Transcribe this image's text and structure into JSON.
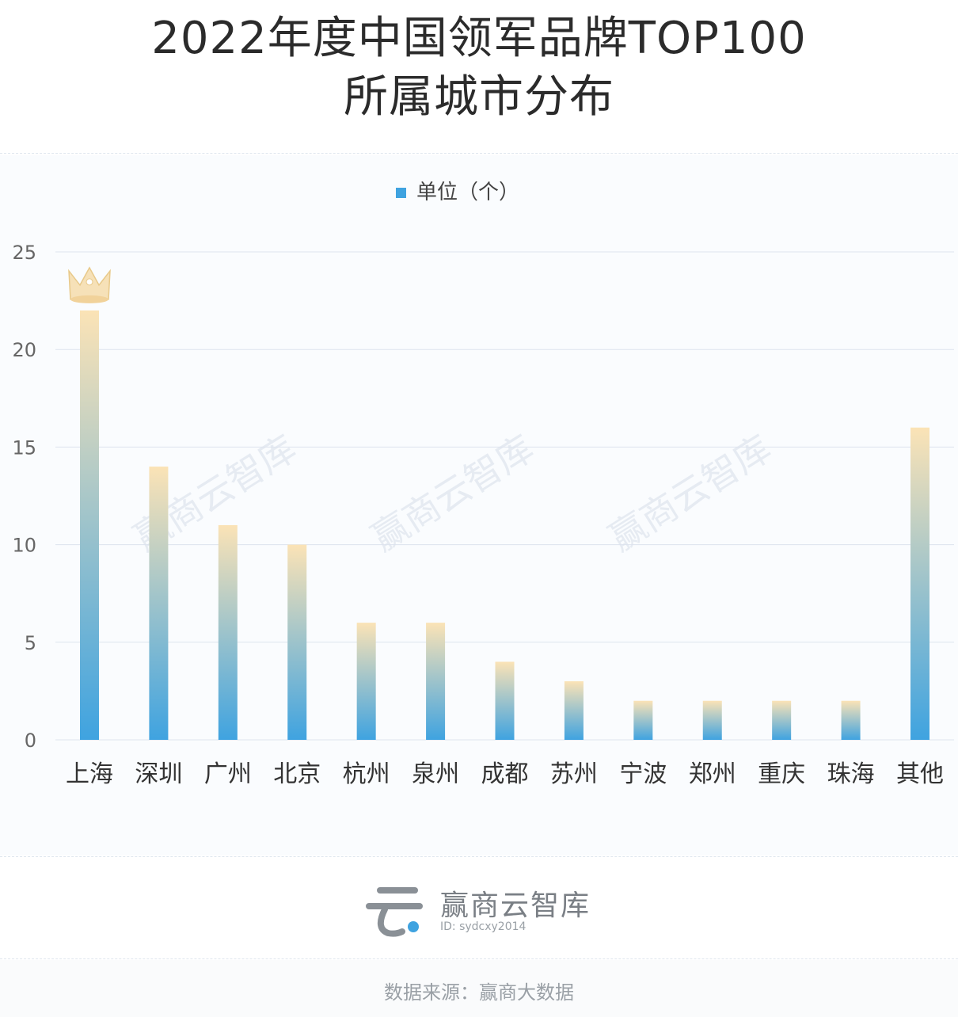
{
  "header": {
    "title_line1": "2022年度中国领军品牌TOP100",
    "title_line2": "所属城市分布"
  },
  "chart_data": {
    "type": "bar",
    "categories": [
      "上海",
      "深圳",
      "广州",
      "北京",
      "杭州",
      "泉州",
      "成都",
      "苏州",
      "宁波",
      "郑州",
      "重庆",
      "珠海",
      "其他"
    ],
    "series": [
      {
        "name": "单位（个）",
        "values": [
          22,
          14,
          11,
          10,
          6,
          6,
          4,
          3,
          2,
          2,
          2,
          2,
          16
        ]
      }
    ],
    "ylim": [
      0,
      25
    ],
    "yticks": [
      "0",
      "5",
      "10",
      "15",
      "20",
      "25"
    ],
    "grid": true,
    "legend_position": "top-center",
    "colors": {
      "bar_bottom": "#3fa3e0",
      "bar_top": "#fbe3b6",
      "grid": "#dde3ee",
      "legend": "#3fa3e0"
    },
    "watermark": "赢商云智库"
  },
  "footer": {
    "brand_name": "赢商云智库",
    "brand_id": "ID: sydcxy2014",
    "source": "数据来源：赢商大数据"
  }
}
